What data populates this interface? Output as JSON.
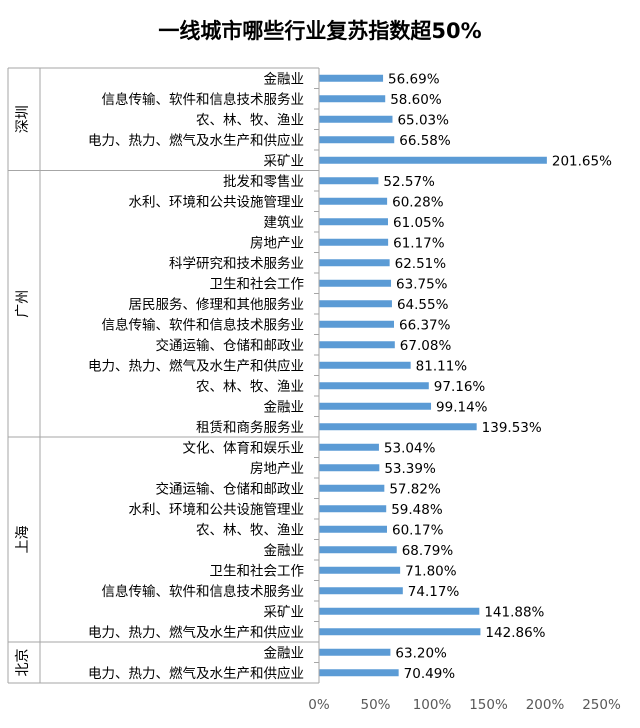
{
  "chart_data": {
    "type": "bar",
    "orientation": "horizontal",
    "title": "一线城市哪些行业复苏指数超50%",
    "xlabel": "",
    "ylabel": "",
    "xlim": [
      0,
      250
    ],
    "x_ticks": [
      "0%",
      "50%",
      "100%",
      "150%",
      "200%",
      "250%"
    ],
    "bar_color": "#5b9bd5",
    "legend": "none",
    "grid": false,
    "groups": [
      {
        "name": "深圳",
        "categories": [
          "金融业",
          "信息传输、软件和信息技术服务业",
          "农、林、牧、渔业",
          "电力、热力、燃气及水生产和供应业",
          "采矿业"
        ],
        "values": [
          56.69,
          58.6,
          65.03,
          66.58,
          201.65
        ],
        "labels": [
          "56.69%",
          "58.60%",
          "65.03%",
          "66.58%",
          "201.65%"
        ]
      },
      {
        "name": "广州",
        "categories": [
          "批发和零售业",
          "水利、环境和公共设施管理业",
          "建筑业",
          "房地产业",
          "科学研究和技术服务业",
          "卫生和社会工作",
          "居民服务、修理和其他服务业",
          "信息传输、软件和信息技术服务业",
          "交通运输、仓储和邮政业",
          "电力、热力、燃气及水生产和供应业",
          "农、林、牧、渔业",
          "金融业",
          "租赁和商务服务业"
        ],
        "values": [
          52.57,
          60.28,
          61.05,
          61.17,
          62.51,
          63.75,
          64.55,
          66.37,
          67.08,
          81.11,
          97.16,
          99.14,
          139.53
        ],
        "labels": [
          "52.57%",
          "60.28%",
          "61.05%",
          "61.17%",
          "62.51%",
          "63.75%",
          "64.55%",
          "66.37%",
          "67.08%",
          "81.11%",
          "97.16%",
          "99.14%",
          "139.53%"
        ]
      },
      {
        "name": "上海",
        "categories": [
          "文化、体育和娱乐业",
          "房地产业",
          "交通运输、仓储和邮政业",
          "水利、环境和公共设施管理业",
          "农、林、牧、渔业",
          "金融业",
          "卫生和社会工作",
          "信息传输、软件和信息技术服务业",
          "采矿业",
          "电力、热力、燃气及水生产和供应业"
        ],
        "values": [
          53.04,
          53.39,
          57.82,
          59.48,
          60.17,
          68.79,
          71.8,
          74.17,
          141.88,
          142.86
        ],
        "labels": [
          "53.04%",
          "53.39%",
          "57.82%",
          "59.48%",
          "60.17%",
          "68.79%",
          "71.80%",
          "74.17%",
          "141.88%",
          "142.86%"
        ]
      },
      {
        "name": "北京",
        "categories": [
          "金融业",
          "电力、热力、燃气及水生产和供应业"
        ],
        "values": [
          63.2,
          70.49
        ],
        "labels": [
          "63.20%",
          "70.49%"
        ]
      }
    ]
  }
}
